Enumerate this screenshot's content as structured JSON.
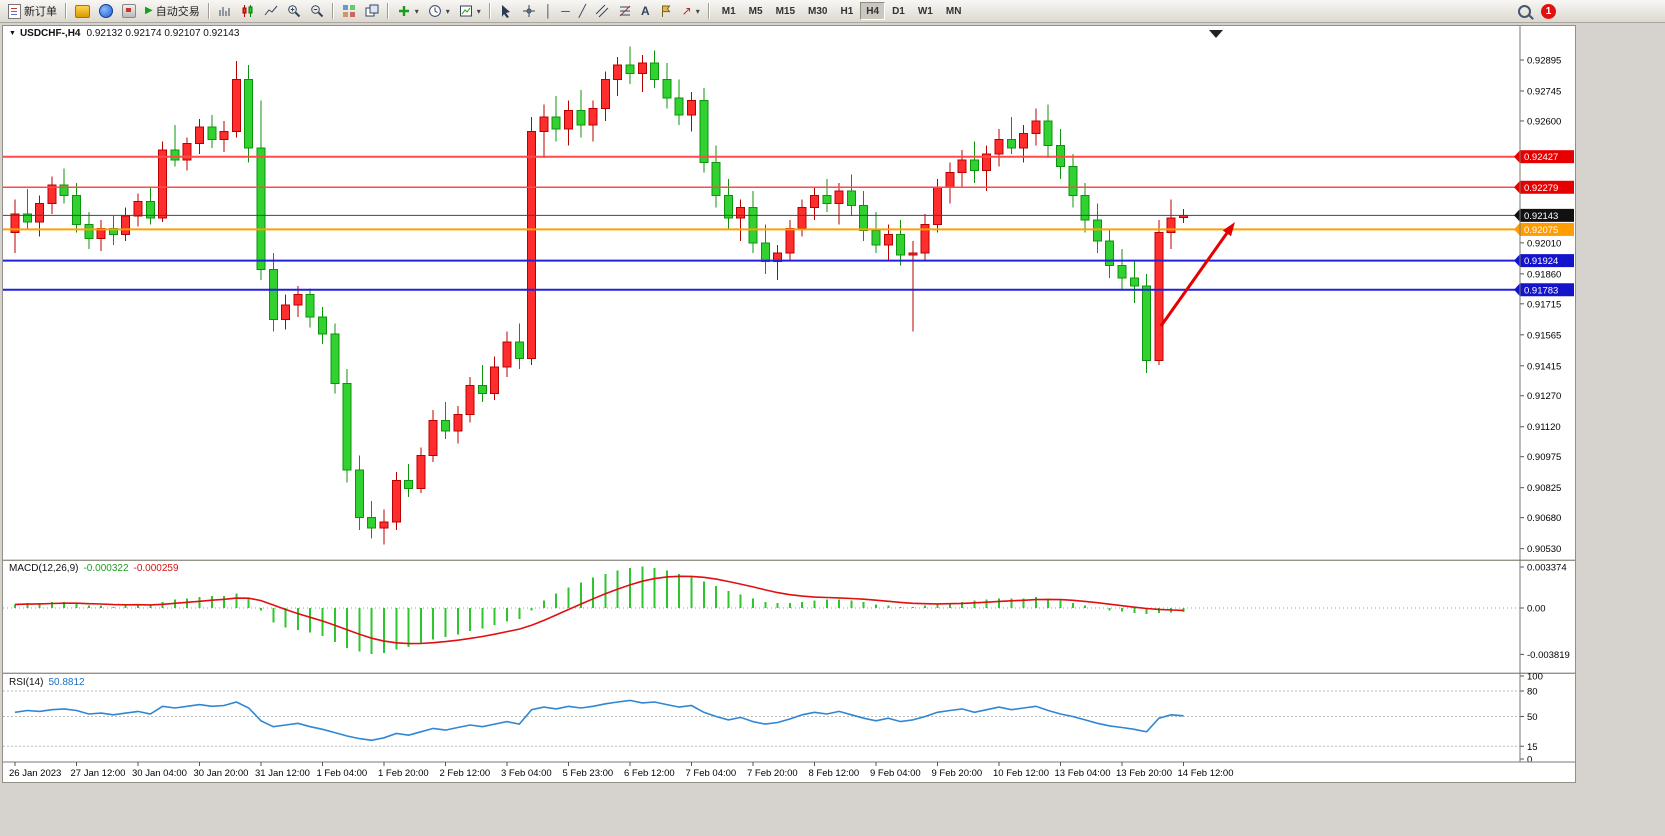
{
  "toolbar": {
    "new_order_label": "新订单",
    "autotrading_label": "自动交易",
    "timeframes": [
      "M1",
      "M5",
      "M15",
      "M30",
      "H1",
      "H4",
      "D1",
      "W1",
      "MN"
    ],
    "active_timeframe": "H4",
    "notification_badge": "1"
  },
  "chart": {
    "title": "USDCHF-,H4",
    "quote": "0.92132 0.92174 0.92107 0.92143",
    "open": "0.92132",
    "high": "0.92174",
    "low": "0.92107",
    "close": "0.92143"
  },
  "price_axis": {
    "ticks": [
      "0.92895",
      "0.92745",
      "0.92600",
      "0.92010",
      "0.91860",
      "0.91715",
      "0.91565",
      "0.91415",
      "0.91270",
      "0.91120",
      "0.90975",
      "0.90825",
      "0.90680",
      "0.90530"
    ]
  },
  "hlines": [
    {
      "label": "0.92427",
      "value": 0.92427,
      "line": "#ff4a4a",
      "bg": "#e60000",
      "width": 2
    },
    {
      "label": "0.92279",
      "value": 0.92279,
      "line": "#ff4a4a",
      "bg": "#e60000",
      "width": 1.5
    },
    {
      "label": "0.92143",
      "value": 0.92143,
      "line": "#444444",
      "bg": "#111111",
      "width": 1
    },
    {
      "label": "0.92075",
      "value": 0.92075,
      "line": "#ffa000",
      "bg": "#ff9c00",
      "width": 2
    },
    {
      "label": "0.91924",
      "value": 0.91924,
      "line": "#2020dd",
      "bg": "#1414cc",
      "width": 2
    },
    {
      "label": "0.91783",
      "value": 0.91783,
      "line": "#2020dd",
      "bg": "#1414cc",
      "width": 2
    }
  ],
  "x_axis": {
    "label_step": 5,
    "labels": [
      "26 Jan 2023",
      "27 Jan 12:00",
      "30 Jan 04:00",
      "30 Jan 20:00",
      "31 Jan 12:00",
      "1 Feb 04:00",
      "1 Feb 20:00",
      "2 Feb 12:00",
      "3 Feb 04:00",
      "5 Feb 23:00",
      "6 Feb 12:00",
      "7 Feb 04:00",
      "7 Feb 20:00",
      "8 Feb 12:00",
      "9 Feb 04:00",
      "9 Feb 20:00",
      "10 Feb 12:00",
      "13 Feb 04:00",
      "13 Feb 20:00",
      "14 Feb 12:00"
    ]
  },
  "indicators": {
    "macd": {
      "label": "MACD(12,26,9)",
      "value_main": "-0.000322",
      "value_signal": "-0.000259",
      "axis": [
        "0.003374",
        "0.00",
        "-0.003819"
      ]
    },
    "rsi": {
      "label": "RSI(14)",
      "value": "50.8812",
      "axis": [
        "100",
        "80",
        "50",
        "15",
        "0"
      ],
      "levels": [
        80,
        50,
        15
      ]
    }
  },
  "annotations": {
    "arrow": {
      "type": "trend-arrow",
      "direction": "up-right",
      "color": "#e60000"
    }
  },
  "colors": {
    "bull_fill": "#ff2e2e",
    "bull_stroke": "#b80000",
    "bear_fill": "#31d131",
    "bear_stroke": "#0c950c",
    "macd_hist": "#2fc52f",
    "macd_signal": "#e01010",
    "rsi_line": "#2f86d4",
    "panel_bg": "#ffffff",
    "window_bg": "#d6d3ce"
  },
  "chart_data": {
    "type": "candlestick",
    "symbol": "USDCHF",
    "period": "H4",
    "note": "red candles = bullish, green candles = bearish (CN color convention)",
    "y_range": [
      0.905,
      0.9299
    ],
    "candles": [
      [
        0.9206,
        0.9222,
        0.9196,
        0.9215
      ],
      [
        0.9215,
        0.9227,
        0.9208,
        0.9211
      ],
      [
        0.9211,
        0.9224,
        0.9204,
        0.922
      ],
      [
        0.922,
        0.9233,
        0.9215,
        0.9229
      ],
      [
        0.9229,
        0.9237,
        0.922,
        0.9224
      ],
      [
        0.9224,
        0.923,
        0.9206,
        0.921
      ],
      [
        0.921,
        0.9216,
        0.9198,
        0.9203
      ],
      [
        0.9203,
        0.9212,
        0.9197,
        0.9208
      ],
      [
        0.9208,
        0.9214,
        0.92,
        0.9205
      ],
      [
        0.9205,
        0.9218,
        0.9202,
        0.9214
      ],
      [
        0.9214,
        0.9225,
        0.9209,
        0.9221
      ],
      [
        0.9221,
        0.9228,
        0.921,
        0.9213
      ],
      [
        0.9213,
        0.925,
        0.9211,
        0.9246
      ],
      [
        0.9246,
        0.9258,
        0.9238,
        0.9241
      ],
      [
        0.9241,
        0.9252,
        0.9236,
        0.9249
      ],
      [
        0.9249,
        0.9261,
        0.9244,
        0.9257
      ],
      [
        0.9257,
        0.9263,
        0.9247,
        0.9251
      ],
      [
        0.9251,
        0.926,
        0.9245,
        0.9255
      ],
      [
        0.9255,
        0.9289,
        0.9252,
        0.928
      ],
      [
        0.928,
        0.9287,
        0.924,
        0.9247
      ],
      [
        0.9247,
        0.927,
        0.9183,
        0.9188
      ],
      [
        0.9188,
        0.9196,
        0.9158,
        0.9164
      ],
      [
        0.9164,
        0.9176,
        0.9159,
        0.9171
      ],
      [
        0.9171,
        0.918,
        0.9165,
        0.9176
      ],
      [
        0.9176,
        0.9179,
        0.916,
        0.9165
      ],
      [
        0.9165,
        0.917,
        0.9152,
        0.9157
      ],
      [
        0.9157,
        0.9162,
        0.9128,
        0.9133
      ],
      [
        0.9133,
        0.914,
        0.9085,
        0.9091
      ],
      [
        0.9091,
        0.9098,
        0.9062,
        0.9068
      ],
      [
        0.9068,
        0.9076,
        0.9058,
        0.9063
      ],
      [
        0.9063,
        0.9072,
        0.9055,
        0.9066
      ],
      [
        0.9066,
        0.909,
        0.9062,
        0.9086
      ],
      [
        0.9086,
        0.9094,
        0.9078,
        0.9082
      ],
      [
        0.9082,
        0.9102,
        0.908,
        0.9098
      ],
      [
        0.9098,
        0.912,
        0.9095,
        0.9115
      ],
      [
        0.9115,
        0.9124,
        0.9106,
        0.911
      ],
      [
        0.911,
        0.9122,
        0.9104,
        0.9118
      ],
      [
        0.9118,
        0.9136,
        0.9114,
        0.9132
      ],
      [
        0.9132,
        0.9142,
        0.9124,
        0.9128
      ],
      [
        0.9128,
        0.9146,
        0.9125,
        0.9141
      ],
      [
        0.9141,
        0.9158,
        0.9136,
        0.9153
      ],
      [
        0.9153,
        0.9162,
        0.914,
        0.9145
      ],
      [
        0.9145,
        0.9262,
        0.9142,
        0.9255
      ],
      [
        0.9255,
        0.9268,
        0.9242,
        0.9262
      ],
      [
        0.9262,
        0.9272,
        0.925,
        0.9256
      ],
      [
        0.9256,
        0.927,
        0.9248,
        0.9265
      ],
      [
        0.9265,
        0.9275,
        0.9252,
        0.9258
      ],
      [
        0.9258,
        0.927,
        0.925,
        0.9266
      ],
      [
        0.9266,
        0.9284,
        0.926,
        0.928
      ],
      [
        0.928,
        0.9291,
        0.9272,
        0.9287
      ],
      [
        0.9287,
        0.9296,
        0.9278,
        0.9283
      ],
      [
        0.9283,
        0.9292,
        0.9274,
        0.9288
      ],
      [
        0.9288,
        0.9294,
        0.9276,
        0.928
      ],
      [
        0.928,
        0.9288,
        0.9266,
        0.9271
      ],
      [
        0.9271,
        0.928,
        0.9258,
        0.9263
      ],
      [
        0.9263,
        0.9274,
        0.9255,
        0.927
      ],
      [
        0.927,
        0.9276,
        0.9235,
        0.924
      ],
      [
        0.924,
        0.9248,
        0.9218,
        0.9224
      ],
      [
        0.9224,
        0.9232,
        0.9208,
        0.9213
      ],
      [
        0.9213,
        0.9222,
        0.9202,
        0.9218
      ],
      [
        0.9218,
        0.9226,
        0.9196,
        0.9201
      ],
      [
        0.9201,
        0.921,
        0.9186,
        0.9192
      ],
      [
        0.9192,
        0.92,
        0.9183,
        0.9196
      ],
      [
        0.9196,
        0.9212,
        0.9192,
        0.9208
      ],
      [
        0.9208,
        0.9222,
        0.9204,
        0.9218
      ],
      [
        0.9218,
        0.9228,
        0.9212,
        0.9224
      ],
      [
        0.9224,
        0.9232,
        0.9216,
        0.922
      ],
      [
        0.922,
        0.923,
        0.921,
        0.9226
      ],
      [
        0.9226,
        0.9234,
        0.9214,
        0.9219
      ],
      [
        0.9219,
        0.9226,
        0.9202,
        0.9207
      ],
      [
        0.9207,
        0.9216,
        0.9196,
        0.92
      ],
      [
        0.92,
        0.921,
        0.9192,
        0.9205
      ],
      [
        0.9205,
        0.9212,
        0.919,
        0.9195
      ],
      [
        0.9195,
        0.9202,
        0.9158,
        0.9196
      ],
      [
        0.9196,
        0.9215,
        0.9192,
        0.921
      ],
      [
        0.921,
        0.9232,
        0.9206,
        0.9228
      ],
      [
        0.9228,
        0.924,
        0.922,
        0.9235
      ],
      [
        0.9235,
        0.9246,
        0.9228,
        0.9241
      ],
      [
        0.9241,
        0.925,
        0.923,
        0.9236
      ],
      [
        0.9236,
        0.9248,
        0.9226,
        0.9244
      ],
      [
        0.9244,
        0.9256,
        0.9238,
        0.9251
      ],
      [
        0.9251,
        0.9262,
        0.9244,
        0.9247
      ],
      [
        0.9247,
        0.9258,
        0.924,
        0.9254
      ],
      [
        0.9254,
        0.9266,
        0.9248,
        0.926
      ],
      [
        0.926,
        0.9268,
        0.9242,
        0.9248
      ],
      [
        0.9248,
        0.9256,
        0.9232,
        0.9238
      ],
      [
        0.9238,
        0.9244,
        0.9218,
        0.9224
      ],
      [
        0.9224,
        0.923,
        0.9206,
        0.9212
      ],
      [
        0.9212,
        0.922,
        0.9196,
        0.9202
      ],
      [
        0.9202,
        0.9208,
        0.9184,
        0.919
      ],
      [
        0.919,
        0.9198,
        0.9178,
        0.9184
      ],
      [
        0.9184,
        0.9192,
        0.9172,
        0.918
      ],
      [
        0.918,
        0.9186,
        0.9138,
        0.9144
      ],
      [
        0.9144,
        0.9212,
        0.9142,
        0.9206
      ],
      [
        0.9206,
        0.9222,
        0.9198,
        0.9213
      ],
      [
        0.92132,
        0.92174,
        0.92107,
        0.92143
      ]
    ],
    "macd": [
      0.0003,
      0.0004,
      0.0004,
      0.0005,
      0.0005,
      0.0004,
      0.0002,
      0.0002,
      0.0001,
      0.0002,
      0.0003,
      0.0002,
      0.0005,
      0.0007,
      0.0008,
      0.0009,
      0.001,
      0.001,
      0.0012,
      0.0008,
      -0.0002,
      -0.0012,
      -0.0016,
      -0.0018,
      -0.002,
      -0.0023,
      -0.0028,
      -0.0033,
      -0.0036,
      -0.0038,
      -0.0037,
      -0.0034,
      -0.0032,
      -0.0029,
      -0.0026,
      -0.0024,
      -0.0022,
      -0.0019,
      -0.0017,
      -0.0014,
      -0.0011,
      -0.0009,
      -0.0002,
      0.0006,
      0.0012,
      0.0017,
      0.0021,
      0.0025,
      0.0028,
      0.0031,
      0.0033,
      0.0034,
      0.0033,
      0.0031,
      0.0028,
      0.0026,
      0.0022,
      0.0018,
      0.0014,
      0.0011,
      0.0008,
      0.0005,
      0.0004,
      0.0004,
      0.0005,
      0.0006,
      0.0007,
      0.0007,
      0.0006,
      0.0005,
      0.0003,
      0.0002,
      0.0001,
      0.0001,
      0.0002,
      0.0003,
      0.0004,
      0.0005,
      0.0006,
      0.0007,
      0.0008,
      0.0008,
      0.0008,
      0.0009,
      0.0008,
      0.0006,
      0.0004,
      0.0002,
      0.0,
      -0.0002,
      -0.0003,
      -0.0004,
      -0.0005,
      -0.0004,
      -0.00035,
      -0.000322
    ],
    "rsi": [
      55,
      57,
      56,
      58,
      59,
      57,
      53,
      54,
      52,
      54,
      56,
      53,
      62,
      60,
      62,
      64,
      62,
      63,
      67,
      60,
      45,
      38,
      40,
      42,
      38,
      35,
      31,
      27,
      24,
      22,
      25,
      30,
      28,
      32,
      36,
      34,
      37,
      40,
      38,
      41,
      44,
      41,
      58,
      61,
      59,
      62,
      60,
      62,
      65,
      67,
      69,
      66,
      67,
      64,
      61,
      63,
      55,
      50,
      46,
      49,
      44,
      41,
      43,
      47,
      52,
      55,
      53,
      56,
      52,
      48,
      45,
      48,
      44,
      46,
      50,
      55,
      57,
      59,
      55,
      58,
      61,
      58,
      60,
      62,
      57,
      53,
      50,
      46,
      42,
      39,
      37,
      35,
      32,
      48,
      52,
      50.8812
    ]
  }
}
